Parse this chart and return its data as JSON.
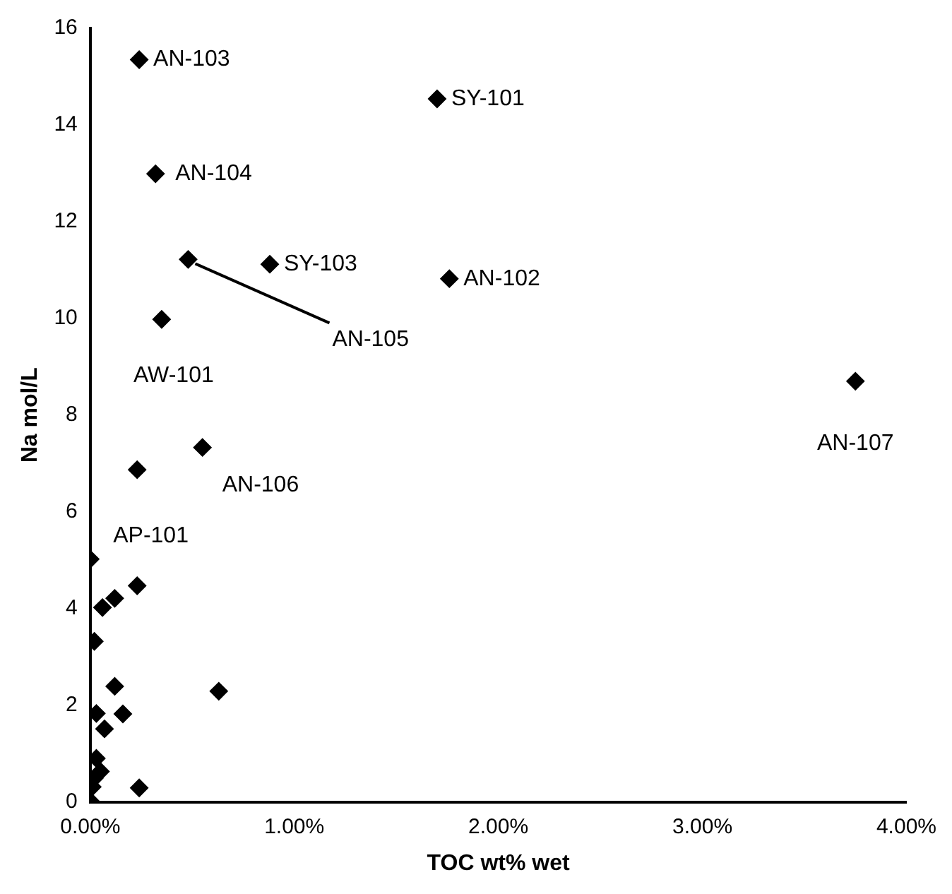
{
  "chart_data": {
    "type": "scatter",
    "xlabel": "TOC wt% wet",
    "ylabel": "Na mol/L",
    "series": [
      {
        "color": "#000000",
        "x": [
          0.24,
          1.7,
          0.32,
          0.48,
          0.88,
          1.76,
          0.35,
          0.55,
          0.23,
          3.75,
          0.0,
          0.12,
          0.06,
          0.23,
          0.02,
          0.12,
          0.63,
          0.03,
          0.16,
          0.07,
          0.03,
          0.05,
          0.02,
          0.01,
          0.24,
          0.0
        ],
        "values": [
          15.35,
          14.54,
          12.99,
          11.22,
          11.12,
          10.82,
          9.98,
          7.33,
          6.87,
          8.7,
          5.02,
          4.21,
          4.02,
          4.47,
          3.32,
          2.39,
          2.29,
          1.83,
          1.82,
          1.51,
          0.9,
          0.63,
          0.49,
          0.31,
          0.29,
          0.02
        ]
      }
    ],
    "annotations": [
      {
        "text": "AN-103",
        "x": 0.24,
        "y": 15.35
      },
      {
        "text": "SY-101",
        "x": 1.7,
        "y": 14.54
      },
      {
        "text": "AN-104",
        "x": 0.32,
        "y": 12.99
      },
      {
        "text": "AN-105",
        "x": 0.48,
        "y": 11.22
      },
      {
        "text": "SY-103",
        "x": 0.88,
        "y": 11.12
      },
      {
        "text": "AN-102",
        "x": 1.76,
        "y": 10.82
      },
      {
        "text": "AW-101",
        "x": 0.35,
        "y": 9.98
      },
      {
        "text": "AN-106",
        "x": 0.55,
        "y": 7.33
      },
      {
        "text": "AP-101",
        "x": 0.23,
        "y": 6.87
      },
      {
        "text": "AN-107",
        "x": 3.75,
        "y": 8.7
      }
    ],
    "xlim": [
      0,
      4
    ],
    "ylim": [
      0,
      16
    ],
    "xticks": [
      {
        "value": 0,
        "label": "0.00%"
      },
      {
        "value": 1,
        "label": "1.00%"
      },
      {
        "value": 2,
        "label": "2.00%"
      },
      {
        "value": 3,
        "label": "3.00%"
      },
      {
        "value": 4,
        "label": "4.00%"
      }
    ],
    "yticks": [
      0,
      2,
      4,
      6,
      8,
      10,
      12,
      14,
      16
    ],
    "marker": "diamond",
    "grid": false,
    "legend": false
  }
}
